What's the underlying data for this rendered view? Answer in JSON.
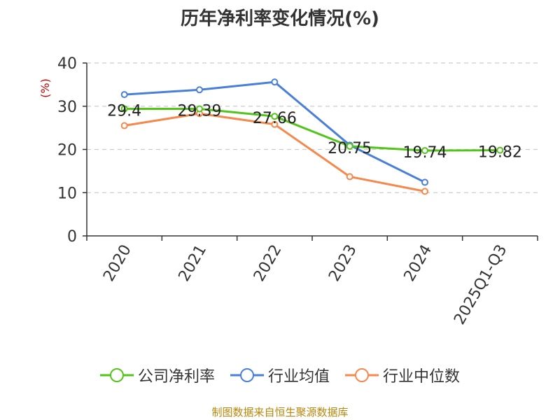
{
  "chart_data": {
    "type": "line",
    "title": "历年净利率变化情况(%)",
    "ylabel": "(%)",
    "categories": [
      "2020",
      "2021",
      "2022",
      "2023",
      "2024",
      "2025Q1-Q3"
    ],
    "ylim": [
      0,
      40
    ],
    "yticks": [
      0,
      10,
      20,
      30,
      40
    ],
    "grid": true,
    "legend_position": "bottom",
    "series": [
      {
        "name": "公司净利率",
        "color": "#52c41a",
        "values": [
          29.4,
          29.39,
          27.66,
          20.75,
          19.74,
          19.82
        ],
        "labels": [
          "29.4",
          "29.39",
          "27.66",
          "20.75",
          "19.74",
          "19.82"
        ]
      },
      {
        "name": "行业均值",
        "color": "#4a7fd9",
        "values": [
          32.7,
          33.8,
          35.6,
          21.0,
          12.4,
          null
        ]
      },
      {
        "name": "行业中位数",
        "color": "#f5884d",
        "values": [
          25.5,
          28.3,
          25.8,
          13.7,
          10.3,
          null
        ]
      }
    ]
  },
  "footer": {
    "source": "制图数据来自恒生聚源数据库"
  }
}
